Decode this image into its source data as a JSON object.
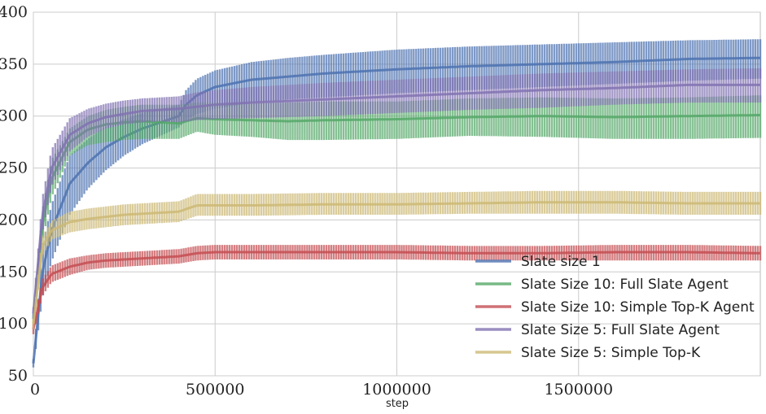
{
  "chart_data": {
    "type": "line",
    "title": "",
    "xlabel": "step",
    "ylabel": "",
    "xlim": [
      0,
      2000000
    ],
    "ylim": [
      50,
      400
    ],
    "xticks": [
      0,
      500000,
      1000000,
      1500000
    ],
    "xtick_labels": [
      "0",
      "500000",
      "1000000",
      "1500000"
    ],
    "yticks": [
      50,
      100,
      150,
      200,
      250,
      300,
      350,
      400
    ],
    "ytick_labels": [
      "50",
      "100",
      "150",
      "200",
      "250",
      "300",
      "350",
      "400"
    ],
    "grid": true,
    "legend_position": "bottom-right",
    "series": [
      {
        "name": "Slate size 1",
        "color": "#4c72b0",
        "x": [
          0,
          25000,
          50000,
          100000,
          150000,
          200000,
          250000,
          300000,
          350000,
          400000,
          420000,
          450000,
          500000,
          600000,
          700000,
          800000,
          1000000,
          1200000,
          1400000,
          1600000,
          1800000,
          2000000
        ],
        "mean": [
          62,
          150,
          190,
          235,
          255,
          270,
          280,
          288,
          294,
          300,
          311,
          320,
          328,
          335,
          338,
          341,
          345,
          348,
          350,
          352,
          355,
          356
        ],
        "lower": [
          58,
          125,
          160,
          205,
          230,
          248,
          262,
          273,
          281,
          289,
          296,
          302,
          307,
          313,
          316,
          318,
          322,
          325,
          328,
          331,
          334,
          336
        ],
        "upper": [
          66,
          175,
          215,
          262,
          278,
          290,
          297,
          303,
          307,
          311,
          325,
          336,
          344,
          352,
          356,
          359,
          364,
          367,
          369,
          371,
          373,
          374
        ]
      },
      {
        "name": "Slate Size 10: Full Slate Agent",
        "color": "#55a868",
        "x": [
          0,
          25000,
          50000,
          100000,
          150000,
          200000,
          250000,
          300000,
          350000,
          400000,
          450000,
          500000,
          600000,
          700000,
          800000,
          1000000,
          1200000,
          1400000,
          1600000,
          1800000,
          2000000
        ],
        "mean": [
          105,
          195,
          240,
          275,
          287,
          292,
          294,
          295,
          294,
          293,
          298,
          297,
          296,
          295,
          296,
          297,
          299,
          300,
          299,
          300,
          301
        ],
        "lower": [
          100,
          180,
          222,
          262,
          272,
          275,
          277,
          278,
          278,
          278,
          285,
          282,
          280,
          277,
          277,
          278,
          281,
          280,
          278,
          278,
          279
        ],
        "upper": [
          110,
          210,
          258,
          288,
          300,
          306,
          309,
          311,
          311,
          311,
          313,
          313,
          312,
          313,
          314,
          314,
          317,
          318,
          317,
          318,
          320
        ]
      },
      {
        "name": "Slate Size 10: Simple Top-K Agent",
        "color": "#c44e52",
        "x": [
          0,
          25000,
          50000,
          100000,
          150000,
          200000,
          250000,
          300000,
          350000,
          400000,
          450000,
          500000,
          600000,
          800000,
          1000000,
          1200000,
          1400000,
          1600000,
          1800000,
          2000000
        ],
        "mean": [
          95,
          135,
          148,
          155,
          159,
          161,
          162,
          163,
          164,
          165,
          168,
          169,
          169,
          169,
          169,
          168,
          168,
          169,
          169,
          168
        ],
        "lower": [
          90,
          127,
          140,
          147,
          152,
          154,
          155,
          156,
          157,
          158,
          161,
          162,
          162,
          162,
          162,
          161,
          161,
          161,
          161,
          161
        ],
        "upper": [
          100,
          143,
          156,
          163,
          166,
          168,
          169,
          170,
          171,
          172,
          175,
          176,
          176,
          176,
          176,
          175,
          175,
          176,
          176,
          175
        ]
      },
      {
        "name": "Slate Size 5: Full Slate Agent",
        "color": "#8172b2",
        "x": [
          0,
          25000,
          50000,
          100000,
          150000,
          200000,
          250000,
          300000,
          350000,
          400000,
          450000,
          500000,
          600000,
          800000,
          1000000,
          1200000,
          1400000,
          1600000,
          1800000,
          2000000
        ],
        "mean": [
          110,
          205,
          250,
          282,
          293,
          299,
          302,
          305,
          306,
          307,
          309,
          311,
          313,
          316,
          319,
          322,
          325,
          327,
          330,
          330
        ],
        "lower": [
          104,
          188,
          232,
          266,
          280,
          288,
          292,
          294,
          295,
          294,
          296,
          297,
          298,
          300,
          303,
          306,
          308,
          311,
          313,
          313
        ],
        "upper": [
          116,
          222,
          268,
          298,
          307,
          312,
          315,
          317,
          318,
          319,
          323,
          325,
          328,
          332,
          335,
          338,
          341,
          343,
          345,
          346
        ]
      },
      {
        "name": "Slate Size 5: Simple Top-K",
        "color": "#ccb974",
        "x": [
          0,
          25000,
          50000,
          100000,
          150000,
          200000,
          250000,
          300000,
          350000,
          400000,
          450000,
          500000,
          600000,
          800000,
          1000000,
          1200000,
          1400000,
          1600000,
          1800000,
          2000000
        ],
        "mean": [
          100,
          175,
          190,
          198,
          201,
          203,
          205,
          206,
          207,
          208,
          214,
          214,
          214,
          215,
          215,
          216,
          217,
          217,
          216,
          216
        ],
        "lower": [
          95,
          166,
          181,
          188,
          191,
          193,
          195,
          196,
          197,
          198,
          204,
          204,
          204,
          205,
          205,
          206,
          206,
          206,
          205,
          205
        ],
        "upper": [
          105,
          184,
          199,
          208,
          211,
          213,
          215,
          216,
          217,
          218,
          225,
          225,
          225,
          226,
          226,
          227,
          228,
          228,
          227,
          227
        ]
      }
    ]
  }
}
